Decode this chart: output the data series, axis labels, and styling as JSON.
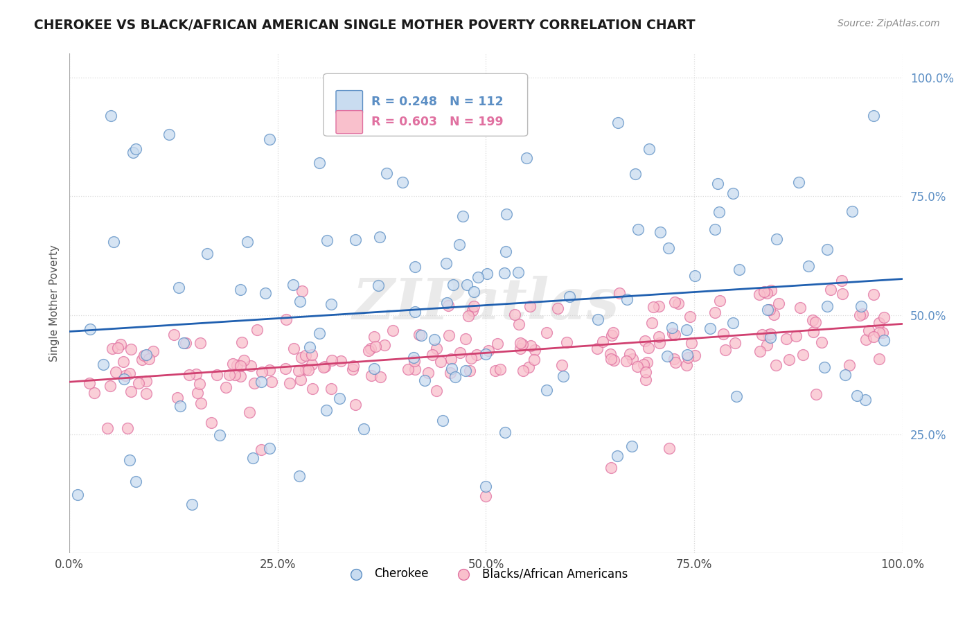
{
  "title": "CHEROKEE VS BLACK/AFRICAN AMERICAN SINGLE MOTHER POVERTY CORRELATION CHART",
  "source": "Source: ZipAtlas.com",
  "ylabel": "Single Mother Poverty",
  "legend_cherokee": "Cherokee",
  "legend_black": "Blacks/African Americans",
  "cherokee_R": 0.248,
  "cherokee_N": 112,
  "black_R": 0.603,
  "black_N": 199,
  "watermark": "ZIPatlas",
  "blue_face": "#c9dcf0",
  "blue_edge": "#5b8ec4",
  "blue_line": "#2060b0",
  "pink_face": "#f9c0cc",
  "pink_edge": "#e070a0",
  "pink_line": "#d04070",
  "background": "#ffffff",
  "grid_color": "#cccccc",
  "ylim_min": 0.0,
  "ylim_max": 1.05,
  "xlim_min": 0.0,
  "xlim_max": 1.0,
  "yticks": [
    0.25,
    0.5,
    0.75,
    1.0
  ],
  "xticks": [
    0.0,
    0.25,
    0.5,
    0.75,
    1.0
  ]
}
